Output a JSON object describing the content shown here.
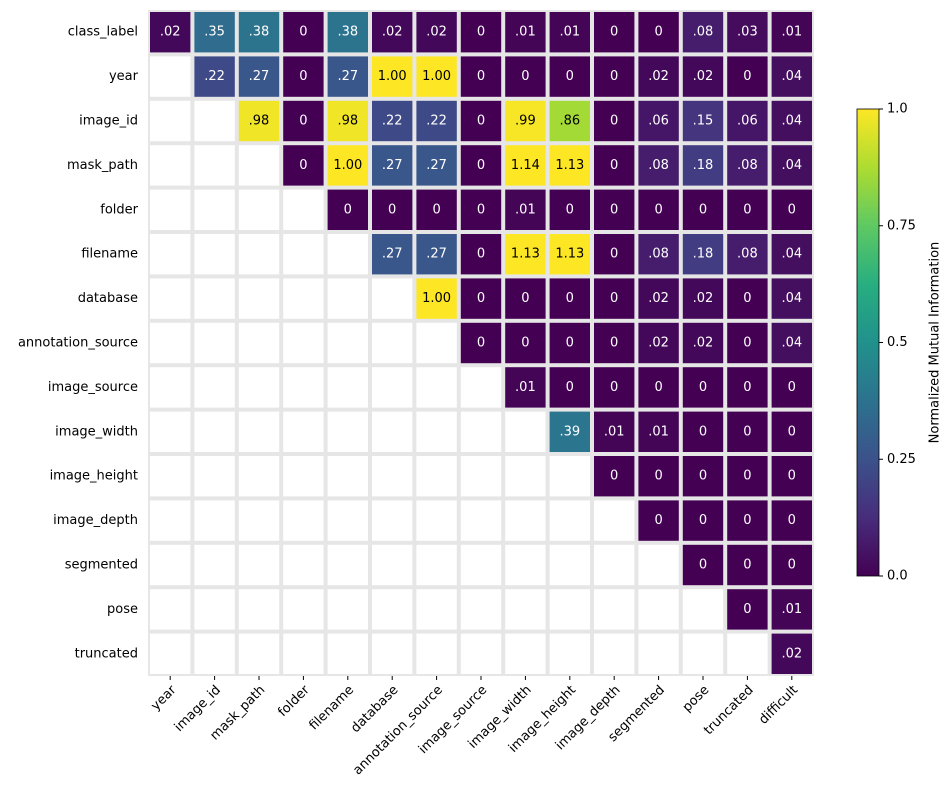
{
  "chart_data": {
    "type": "heatmap",
    "colormap": "viridis",
    "colorbar_label": "Normalized Mutual Information",
    "clim": [
      0,
      1
    ],
    "cticks": [
      {
        "value": 0,
        "label": "0.0"
      },
      0.25,
      0.5,
      0.75,
      {
        "value": 1,
        "label": "1.0"
      }
    ],
    "y_categories": [
      "class_label",
      "year",
      "image_id",
      "mask_path",
      "folder",
      "filename",
      "database",
      "annotation_source",
      "image_source",
      "image_width",
      "image_height",
      "image_depth",
      "segmented",
      "pose",
      "truncated"
    ],
    "x_categories": [
      "year",
      "image_id",
      "mask_path",
      "folder",
      "filename",
      "database",
      "annotation_source",
      "image_source",
      "image_width",
      "image_height",
      "image_depth",
      "segmented",
      "pose",
      "truncated",
      "difficult"
    ],
    "values": [
      [
        0.02,
        0.35,
        0.38,
        0,
        0.38,
        0.02,
        0.02,
        0,
        0.01,
        0.01,
        0,
        0,
        0.08,
        0.03,
        0.01
      ],
      [
        null,
        0.22,
        0.27,
        0,
        0.27,
        1.0,
        1.0,
        0,
        0,
        0,
        0,
        0.02,
        0.02,
        0,
        0.04
      ],
      [
        null,
        null,
        0.98,
        0,
        0.98,
        0.22,
        0.22,
        0,
        0.99,
        0.86,
        0,
        0.06,
        0.15,
        0.06,
        0.04
      ],
      [
        null,
        null,
        null,
        0,
        1.0,
        0.27,
        0.27,
        0,
        1.14,
        1.13,
        0,
        0.08,
        0.18,
        0.08,
        0.04
      ],
      [
        null,
        null,
        null,
        null,
        0,
        0,
        0,
        0,
        0.01,
        0,
        0,
        0,
        0,
        0,
        0
      ],
      [
        null,
        null,
        null,
        null,
        null,
        0.27,
        0.27,
        0,
        1.13,
        1.13,
        0,
        0.08,
        0.18,
        0.08,
        0.04
      ],
      [
        null,
        null,
        null,
        null,
        null,
        null,
        1.0,
        0,
        0,
        0,
        0,
        0.02,
        0.02,
        0,
        0.04
      ],
      [
        null,
        null,
        null,
        null,
        null,
        null,
        null,
        0,
        0,
        0,
        0,
        0.02,
        0.02,
        0,
        0.04
      ],
      [
        null,
        null,
        null,
        null,
        null,
        null,
        null,
        null,
        0.01,
        0,
        0,
        0,
        0,
        0,
        0
      ],
      [
        null,
        null,
        null,
        null,
        null,
        null,
        null,
        null,
        null,
        0.39,
        0.01,
        0.01,
        0,
        0,
        0
      ],
      [
        null,
        null,
        null,
        null,
        null,
        null,
        null,
        null,
        null,
        null,
        0,
        0,
        0,
        0,
        0
      ],
      [
        null,
        null,
        null,
        null,
        null,
        null,
        null,
        null,
        null,
        null,
        null,
        0,
        0,
        0,
        0
      ],
      [
        null,
        null,
        null,
        null,
        null,
        null,
        null,
        null,
        null,
        null,
        null,
        null,
        0,
        0,
        0
      ],
      [
        null,
        null,
        null,
        null,
        null,
        null,
        null,
        null,
        null,
        null,
        null,
        null,
        null,
        0,
        0.01
      ],
      [
        null,
        null,
        null,
        null,
        null,
        null,
        null,
        null,
        null,
        null,
        null,
        null,
        null,
        null,
        0.02
      ]
    ],
    "value_labels": [
      [
        ".02",
        ".35",
        ".38",
        "0",
        ".38",
        ".02",
        ".02",
        "0",
        ".01",
        ".01",
        "0",
        "0",
        ".08",
        ".03",
        ".01"
      ],
      [
        null,
        ".22",
        ".27",
        "0",
        ".27",
        "1.00",
        "1.00",
        "0",
        "0",
        "0",
        "0",
        ".02",
        ".02",
        "0",
        ".04"
      ],
      [
        null,
        null,
        ".98",
        "0",
        ".98",
        ".22",
        ".22",
        "0",
        ".99",
        ".86",
        "0",
        ".06",
        ".15",
        ".06",
        ".04"
      ],
      [
        null,
        null,
        null,
        "0",
        "1.00",
        ".27",
        ".27",
        "0",
        "1.14",
        "1.13",
        "0",
        ".08",
        ".18",
        ".08",
        ".04"
      ],
      [
        null,
        null,
        null,
        null,
        "0",
        "0",
        "0",
        "0",
        ".01",
        "0",
        "0",
        "0",
        "0",
        "0",
        "0"
      ],
      [
        null,
        null,
        null,
        null,
        null,
        ".27",
        ".27",
        "0",
        "1.13",
        "1.13",
        "0",
        ".08",
        ".18",
        ".08",
        ".04"
      ],
      [
        null,
        null,
        null,
        null,
        null,
        null,
        "1.00",
        "0",
        "0",
        "0",
        "0",
        ".02",
        ".02",
        "0",
        ".04"
      ],
      [
        null,
        null,
        null,
        null,
        null,
        null,
        null,
        "0",
        "0",
        "0",
        "0",
        ".02",
        ".02",
        "0",
        ".04"
      ],
      [
        null,
        null,
        null,
        null,
        null,
        null,
        null,
        null,
        ".01",
        "0",
        "0",
        "0",
        "0",
        "0",
        "0"
      ],
      [
        null,
        null,
        null,
        null,
        null,
        null,
        null,
        null,
        null,
        ".39",
        ".01",
        ".01",
        "0",
        "0",
        "0"
      ],
      [
        null,
        null,
        null,
        null,
        null,
        null,
        null,
        null,
        null,
        null,
        "0",
        "0",
        "0",
        "0",
        "0"
      ],
      [
        null,
        null,
        null,
        null,
        null,
        null,
        null,
        null,
        null,
        null,
        null,
        "0",
        "0",
        "0",
        "0"
      ],
      [
        null,
        null,
        null,
        null,
        null,
        null,
        null,
        null,
        null,
        null,
        null,
        null,
        "0",
        "0",
        "0"
      ],
      [
        null,
        null,
        null,
        null,
        null,
        null,
        null,
        null,
        null,
        null,
        null,
        null,
        null,
        "0",
        ".01"
      ],
      [
        null,
        null,
        null,
        null,
        null,
        null,
        null,
        null,
        null,
        null,
        null,
        null,
        null,
        null,
        ".02"
      ]
    ]
  }
}
